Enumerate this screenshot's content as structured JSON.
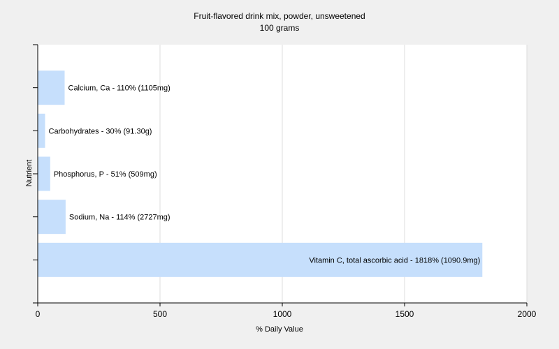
{
  "chart_data": {
    "type": "bar",
    "orientation": "horizontal",
    "title": "Fruit-flavored drink mix, powder, unsweetened",
    "subtitle": "100 grams",
    "xlabel": "% Daily Value",
    "ylabel": "Nutrient",
    "xlim": [
      0,
      2000
    ],
    "xticks": [
      0,
      500,
      1000,
      1500,
      2000
    ],
    "grid": true,
    "categories": [
      "Calcium, Ca",
      "Carbohydrates",
      "Phosphorus, P",
      "Sodium, Na",
      "Vitamin C, total ascorbic acid"
    ],
    "values": [
      110,
      30,
      51,
      114,
      1818
    ],
    "data_labels": [
      "Calcium, Ca - 110% (1105mg)",
      "Carbohydrates - 30% (91.30g)",
      "Phosphorus, P - 51% (509mg)",
      "Sodium, Na - 114% (2727mg)",
      "Vitamin C, total ascorbic acid - 1818% (1090.9mg)"
    ],
    "colors": {
      "bar": "#c6dffc",
      "plot_background": "#ffffff",
      "page_background": "#f0f0f0",
      "grid": "#dddddd",
      "axis": "#000000"
    }
  }
}
